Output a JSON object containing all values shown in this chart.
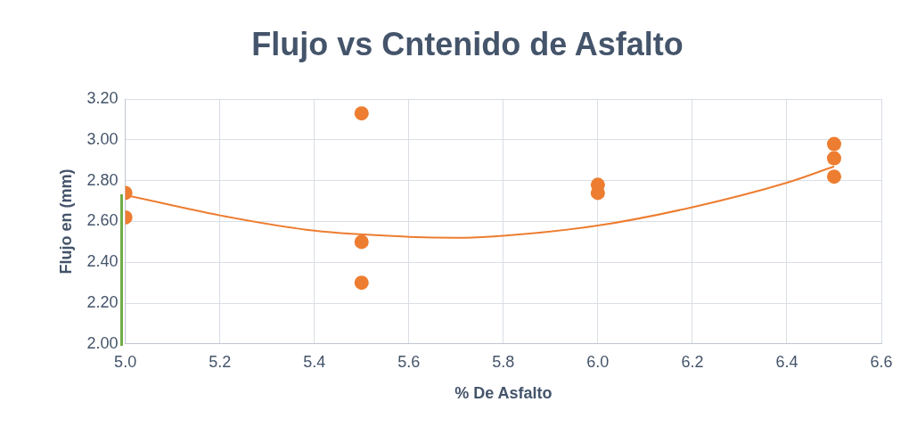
{
  "chart_data": {
    "type": "scatter",
    "title": "Flujo vs Cntenido de Asfalto",
    "xlabel": "% De Asfalto",
    "ylabel": "Flujo en (mm)",
    "series": [
      {
        "color": "#ed7d31",
        "x": [
          5.0,
          5.0,
          5.5,
          5.5,
          5.5,
          6.0,
          6.0,
          6.5,
          6.5,
          6.5
        ],
        "values": [
          2.74,
          2.62,
          3.13,
          2.5,
          2.3,
          2.78,
          2.74,
          2.98,
          2.91,
          2.82
        ],
        "marker": "circle"
      },
      {
        "type": "line",
        "color": "#ed7d31",
        "x": [
          5.0,
          5.2,
          5.4,
          5.6,
          5.7,
          5.8,
          6.0,
          6.2,
          6.4,
          6.5
        ],
        "values": [
          2.73,
          2.63,
          2.555,
          2.525,
          2.52,
          2.53,
          2.58,
          2.67,
          2.79,
          2.87
        ],
        "marker": "none"
      }
    ],
    "xlim": [
      5.0,
      6.6
    ],
    "xticks": [
      {
        "value": 5.0,
        "label": "5.0"
      },
      {
        "value": 5.2,
        "label": "5.2"
      },
      {
        "value": 5.4,
        "label": "5.4"
      },
      {
        "value": 5.6,
        "label": "5.6"
      },
      {
        "value": 5.8,
        "label": "5.8"
      },
      {
        "value": 6.0,
        "label": "6.0"
      },
      {
        "value": 6.2,
        "label": "6.2"
      },
      {
        "value": 6.4,
        "label": "6.4"
      },
      {
        "value": 6.6,
        "label": "6.6"
      }
    ],
    "ylim": [
      2.0,
      3.2
    ],
    "yticks": [
      {
        "value": 2.0,
        "label": "2.00"
      },
      {
        "value": 2.2,
        "label": "2.20"
      },
      {
        "value": 2.4,
        "label": "2.40"
      },
      {
        "value": 2.6,
        "label": "2.60"
      },
      {
        "value": 2.8,
        "label": "2.80"
      },
      {
        "value": 3.0,
        "label": "3.00"
      },
      {
        "value": 3.2,
        "label": "3.20"
      }
    ],
    "grid": true,
    "legend": false
  }
}
